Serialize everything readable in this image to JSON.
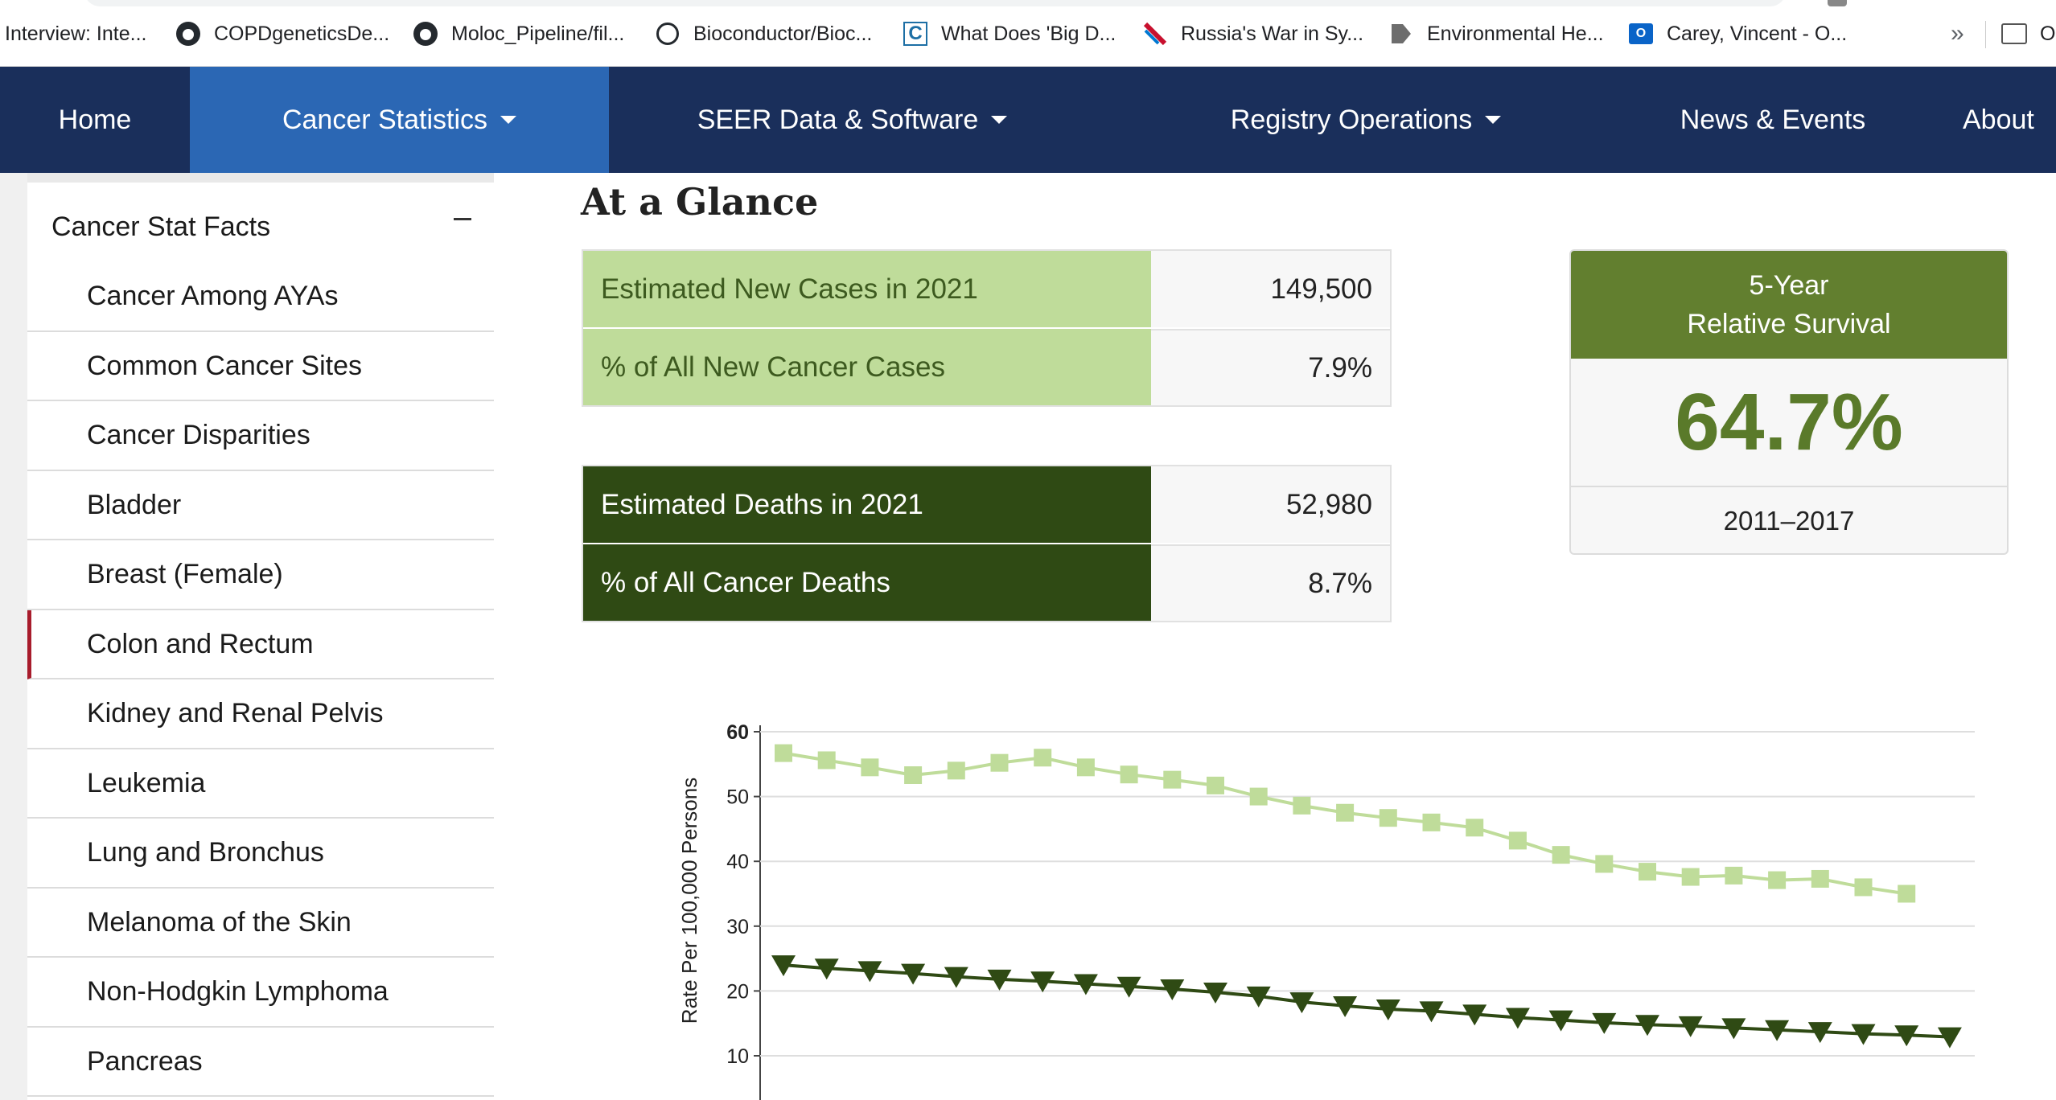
{
  "bookmarks": [
    {
      "label": "Interview: Inte...",
      "icon": "none"
    },
    {
      "label": "COPDgeneticsDe...",
      "icon": "github-icon"
    },
    {
      "label": "Moloc_Pipeline/fil...",
      "icon": "github-icon"
    },
    {
      "label": "Bioconductor/Bioc...",
      "icon": "github-outline-icon"
    },
    {
      "label": "What Does 'Big D...",
      "icon": "c-icon"
    },
    {
      "label": "Russia's War in Sy...",
      "icon": "airline-icon"
    },
    {
      "label": "Environmental He...",
      "icon": "tag-icon"
    },
    {
      "label": "Carey, Vincent - O...",
      "icon": "outlook-icon"
    },
    {
      "label": "O",
      "icon": "folder-icon"
    }
  ],
  "bookmarks_overflow": "»",
  "nav": {
    "items": [
      "Home",
      "Cancer Statistics",
      "SEER Data & Software",
      "Registry Operations",
      "News & Events",
      "About"
    ],
    "active": "Cancer Statistics",
    "colors": {
      "bar": "#1a2f5b",
      "active": "#2b67b4"
    }
  },
  "sidebar": {
    "header": "Cancer Stat Facts",
    "collapse_symbol": "–",
    "items": [
      "Cancer Among AYAs",
      "Common Cancer Sites",
      "Cancer Disparities",
      "Bladder",
      "Breast (Female)",
      "Colon and Rectum",
      "Kidney and Renal Pelvis",
      "Leukemia",
      "Lung and Bronchus",
      "Melanoma of the Skin",
      "Non-Hodgkin Lymphoma",
      "Pancreas"
    ],
    "current": "Colon and Rectum",
    "accent": "#a81c2c"
  },
  "main": {
    "title": "At a Glance",
    "new_cases": [
      {
        "label": "Estimated New Cases in 2021",
        "value": "149,500"
      },
      {
        "label": "% of All New Cancer Cases",
        "value": "7.9%"
      }
    ],
    "deaths": [
      {
        "label": "Estimated Deaths in 2021",
        "value": "52,980"
      },
      {
        "label": "% of All Cancer Deaths",
        "value": "8.7%"
      }
    ],
    "survival": {
      "heading_line1": "5-Year",
      "heading_line2": "Relative Survival",
      "value": "64.7%",
      "years": "2011–2017"
    },
    "colors": {
      "light_green": "#bfdc9a",
      "dark_green": "#2f4a14",
      "survival_green": "#627f2f"
    }
  },
  "chart_data": {
    "type": "line",
    "ylabel": "Rate Per 100,000 Persons",
    "yticks": [
      10,
      20,
      30,
      40,
      50,
      60
    ],
    "ylim": [
      0,
      60
    ],
    "ylim_visible": [
      7,
      60
    ],
    "grid": true,
    "series": [
      {
        "marker": "square",
        "color": "#bfdc9a",
        "values": [
          56.7,
          55.6,
          54.5,
          53.3,
          54.0,
          55.2,
          56.0,
          54.5,
          53.4,
          52.6,
          51.7,
          50.0,
          48.6,
          47.5,
          46.7,
          46.0,
          45.2,
          43.2,
          41.0,
          39.6,
          38.4,
          37.6,
          37.8,
          37.1,
          37.3,
          36.0,
          35.0
        ]
      },
      {
        "marker": "triangle-down",
        "color": "#2f4a14",
        "values": [
          24.0,
          23.5,
          23.1,
          22.7,
          22.2,
          21.8,
          21.5,
          21.1,
          20.7,
          20.3,
          19.8,
          19.2,
          18.3,
          17.7,
          17.2,
          16.9,
          16.4,
          15.9,
          15.5,
          15.1,
          14.8,
          14.6,
          14.3,
          14.0,
          13.7,
          13.4,
          13.2,
          12.9
        ]
      }
    ]
  }
}
